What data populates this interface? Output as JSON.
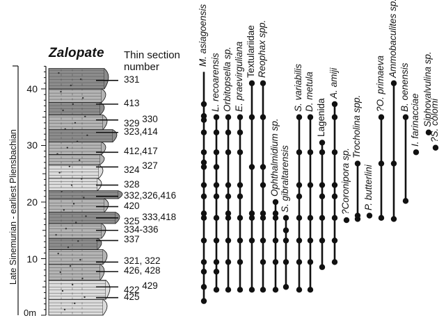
{
  "section": {
    "title": "Zalopate",
    "column_header": [
      "Thin section",
      "number"
    ],
    "age_label": "Late Sinemurian - earliest Pliensbachian",
    "unit_label": "0m",
    "depth_ticks": [
      "10",
      "20",
      "30",
      "40"
    ]
  },
  "samples": [
    {
      "label": "331",
      "sup": "",
      "height_m": 41.5
    },
    {
      "label": "413",
      "sup": "",
      "height_m": 37.3
    },
    {
      "label": "329",
      "sup": "330",
      "height_m": 34.5
    },
    {
      "label": "323,414",
      "sup": "",
      "height_m": 32.3
    },
    {
      "label": "412,417",
      "sup": "",
      "height_m": 28.8
    },
    {
      "label": "324",
      "sup": "327",
      "height_m": 26.2
    },
    {
      "label": "328",
      "sup": "",
      "height_m": 23.0
    },
    {
      "label": "332,326,416",
      "sup": "",
      "height_m": 21.0
    },
    {
      "label": "420",
      "sup": "",
      "height_m": 19.2
    },
    {
      "label": "325",
      "sup": "333,418",
      "height_m": 17.2
    },
    {
      "label": "334-336",
      "sup": "",
      "height_m": 15.0
    },
    {
      "label": "337",
      "sup": "",
      "height_m": 13.2
    },
    {
      "label": "321, 322",
      "sup": "",
      "height_m": 9.4
    },
    {
      "label": "426, 428",
      "sup": "",
      "height_m": 7.7
    },
    {
      "label": "422",
      "sup": "429",
      "height_m": 5.0
    },
    {
      "label": "425",
      "sup": "",
      "height_m": 3.1
    }
  ],
  "taxa": [
    {
      "name": "M. asiagoensis",
      "italic": true,
      "range": [
        2.5,
        43.0
      ],
      "occurrences": [
        2.5,
        5.0,
        7.7,
        9.4,
        13.2,
        17.2,
        18.0,
        21.0,
        23.0,
        26.2,
        27.0,
        28.8,
        32.3,
        34.5,
        35.2,
        37.3
      ]
    },
    {
      "name": "L. recoarensis",
      "italic": true,
      "range": [
        4.5,
        35.0
      ],
      "occurrences": [
        4.5,
        7.7,
        9.4,
        13.2,
        17.2,
        21.0,
        23.0,
        26.2,
        28.8,
        32.3,
        35.0
      ]
    },
    {
      "name": "Orbitopsella sp.",
      "italic": true,
      "range": [
        4.5,
        35.0
      ],
      "occurrences": [
        4.5,
        9.4,
        13.2,
        17.2,
        18.0,
        21.0,
        23.0,
        28.8,
        32.3,
        35.0
      ]
    },
    {
      "name": "E. praevirguliana",
      "italic": true,
      "range": [
        4.5,
        35.0
      ],
      "occurrences": [
        4.5,
        9.4,
        13.2,
        17.2,
        21.0,
        23.0,
        28.8,
        32.3,
        35.0
      ]
    },
    {
      "name": "Textulariidae",
      "italic": false,
      "range": [
        4.5,
        41.0
      ],
      "occurrences": [
        4.5,
        13.2,
        17.2,
        18.0,
        26.2,
        35.0,
        41.0
      ]
    },
    {
      "name": "Reophax spp.",
      "italic": true,
      "range": [
        4.5,
        41.0
      ],
      "occurrences": [
        4.5,
        9.4,
        13.2,
        17.2,
        18.0,
        23.0,
        26.2,
        35.0,
        41.0
      ]
    },
    {
      "name": "Ophthalmidium sp.",
      "italic": true,
      "range": [
        4.5,
        20.0
      ],
      "occurrences": [
        4.5,
        9.4,
        13.2,
        17.2,
        18.0,
        20.0
      ]
    },
    {
      "name": "S. gibraltarensis",
      "italic": true,
      "range": [
        5.0,
        17.2
      ],
      "occurrences": [
        5.0,
        9.4,
        13.2,
        15.0,
        17.2
      ]
    },
    {
      "name": "S. variabilis",
      "italic": true,
      "range": [
        4.5,
        35.0
      ],
      "occurrences": [
        4.5,
        9.4,
        13.2,
        17.2,
        21.0,
        23.0,
        28.8,
        35.0
      ]
    },
    {
      "name": "D. metula",
      "italic": true,
      "range": [
        4.5,
        35.0
      ],
      "occurrences": [
        4.5,
        9.4,
        13.2,
        17.2,
        23.0,
        28.8,
        35.0
      ]
    },
    {
      "name": "Lagenida",
      "italic": false,
      "range": [
        8.5,
        30.5
      ],
      "occurrences": [
        8.5,
        13.2,
        17.2,
        21.0,
        23.0,
        28.8,
        30.5
      ]
    },
    {
      "name": "A. amiji",
      "italic": true,
      "range": [
        9.4,
        37.3
      ],
      "occurrences": [
        9.4,
        13.2,
        17.2,
        21.0,
        23.0,
        28.8,
        35.0,
        37.3
      ]
    },
    {
      "name": "?Coronipora sp.",
      "italic": true,
      "range": [
        16.8,
        16.8
      ],
      "occurrences": [
        16.8
      ]
    },
    {
      "name": "Trocholina spp.",
      "italic": true,
      "range": [
        17.0,
        26.8
      ],
      "occurrences": [
        17.0,
        17.6,
        26.8
      ]
    },
    {
      "name": "P. butterlini",
      "italic": true,
      "range": [
        17.6,
        17.6
      ],
      "occurrences": [
        17.6
      ]
    },
    {
      "name": "?O. primaeva",
      "italic": true,
      "range": [
        17.2,
        35.0
      ],
      "occurrences": [
        17.2,
        26.8,
        35.0
      ]
    },
    {
      "name": "Ammobaculites sp.",
      "italic": true,
      "range": [
        17.0,
        41.0
      ],
      "occurrences": [
        17.0,
        26.8,
        41.0
      ]
    },
    {
      "name": "B. oenensis",
      "italic": true,
      "range": [
        20.2,
        35.0
      ],
      "occurrences": [
        20.2,
        35.0
      ]
    },
    {
      "name": "I. farinacciae",
      "italic": true,
      "range": [
        28.8,
        28.8
      ],
      "occurrences": [
        28.8
      ]
    },
    {
      "name": "Siphovalvulina sp.",
      "italic": true,
      "range": [
        32.3,
        32.3
      ],
      "occurrences": [
        32.3
      ]
    },
    {
      "name": "?S. colomi",
      "italic": true,
      "range": [
        29.6,
        29.6
      ],
      "occurrences": [
        29.6
      ]
    }
  ],
  "colors": {
    "ink": "#111111",
    "bed_dark": "#8c8c8c",
    "bed_mid": "#b4b4b4",
    "bed_light": "#dcdcdc"
  }
}
